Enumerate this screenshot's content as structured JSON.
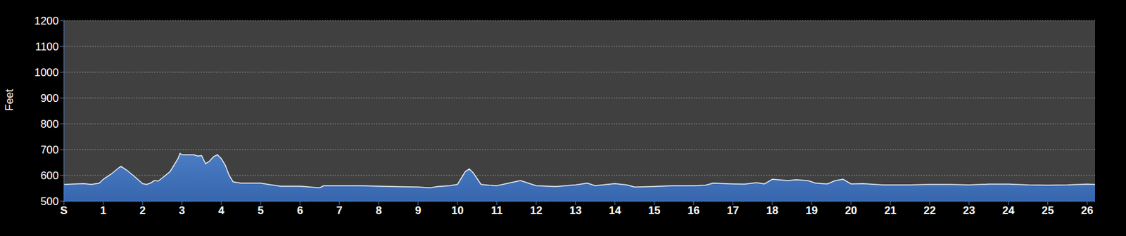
{
  "chart_data": {
    "type": "area",
    "y_label": "Feet",
    "color": "#4a7cc4",
    "grid": true,
    "xlim": [
      0,
      26.2
    ],
    "ylim": [
      500,
      1200
    ],
    "yticks": [
      500,
      600,
      700,
      800,
      900,
      1000,
      1100,
      1200
    ],
    "xticks": [
      {
        "value": 0,
        "label": "S"
      },
      1,
      2,
      3,
      4,
      5,
      6,
      7,
      8,
      9,
      10,
      11,
      12,
      13,
      14,
      15,
      16,
      17,
      18,
      19,
      20,
      21,
      22,
      23,
      24,
      25,
      26
    ],
    "x": [
      0,
      0.5,
      0.7,
      0.9,
      1.0,
      1.2,
      1.4,
      1.45,
      1.6,
      1.8,
      2.0,
      2.1,
      2.2,
      2.3,
      2.4,
      2.5,
      2.7,
      2.8,
      2.9,
      2.95,
      3.0,
      3.3,
      3.4,
      3.5,
      3.6,
      3.7,
      3.8,
      3.9,
      4.0,
      4.1,
      4.2,
      4.3,
      4.5,
      4.7,
      5.0,
      5.2,
      5.5,
      6.0,
      6.5,
      6.6,
      7.0,
      7.5,
      8.0,
      8.5,
      9.0,
      9.3,
      9.5,
      9.8,
      10.0,
      10.1,
      10.2,
      10.3,
      10.4,
      10.6,
      10.8,
      11.0,
      11.3,
      11.6,
      11.8,
      12.0,
      12.5,
      13.0,
      13.3,
      13.5,
      13.8,
      14.0,
      14.3,
      14.5,
      15.0,
      15.5,
      16.0,
      16.3,
      16.5,
      17.0,
      17.3,
      17.6,
      17.8,
      18.0,
      18.4,
      18.6,
      18.9,
      19.1,
      19.4,
      19.6,
      19.8,
      20.0,
      20.3,
      20.8,
      21.0,
      21.5,
      22.0,
      22.5,
      23.0,
      23.5,
      24.0,
      24.5,
      25.0,
      25.5,
      26.0,
      26.2
    ],
    "values": [
      565,
      568,
      565,
      570,
      585,
      605,
      630,
      635,
      620,
      595,
      568,
      565,
      570,
      580,
      578,
      590,
      615,
      640,
      665,
      685,
      680,
      680,
      675,
      677,
      645,
      655,
      672,
      680,
      665,
      640,
      600,
      575,
      570,
      570,
      570,
      565,
      558,
      558,
      552,
      560,
      560,
      560,
      558,
      556,
      555,
      552,
      557,
      560,
      565,
      590,
      615,
      625,
      610,
      565,
      562,
      560,
      570,
      580,
      570,
      560,
      557,
      563,
      570,
      560,
      565,
      568,
      563,
      555,
      557,
      560,
      560,
      562,
      570,
      567,
      566,
      572,
      567,
      585,
      580,
      583,
      580,
      570,
      567,
      580,
      585,
      567,
      568,
      563,
      563,
      563,
      565,
      565,
      563,
      566,
      566,
      563,
      562,
      563,
      566,
      565
    ]
  }
}
